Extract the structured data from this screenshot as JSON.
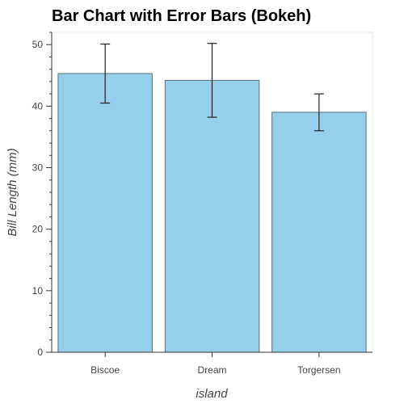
{
  "chart_data": {
    "type": "bar",
    "title": "Bar Chart with Error Bars (Bokeh)",
    "xlabel": "island",
    "ylabel": "Bill Length (mm)",
    "categories": [
      "Biscoe",
      "Dream",
      "Torgersen"
    ],
    "values": [
      45.3,
      44.2,
      39.0
    ],
    "errors": [
      {
        "low": 40.5,
        "high": 50.1
      },
      {
        "low": 38.2,
        "high": 50.2
      },
      {
        "low": 36.0,
        "high": 42.0
      }
    ],
    "ylim": [
      0,
      52
    ],
    "yticks": [
      0,
      10,
      20,
      30,
      40,
      50
    ],
    "grid": false,
    "colors": {
      "bar_fill": "#95cfec",
      "bar_stroke": "#5a6e78",
      "error_bar": "#222222",
      "axis": "#333333"
    }
  }
}
